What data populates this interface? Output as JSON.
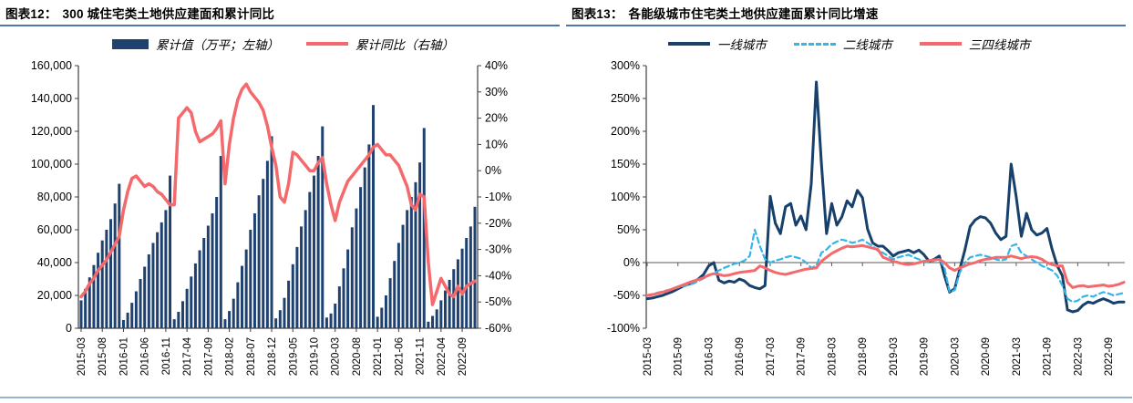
{
  "panels": [
    {
      "title_prefix": "图表12：",
      "title": "300 城住宅类土地供应建面和累计同比",
      "rule_color": "#4f76ae",
      "footer_rule_color": "#95b3d7",
      "legend": [
        {
          "label": "累计值（万平；左轴）",
          "swatch": "bar",
          "color": "#1e4170"
        },
        {
          "label": "累计同比（右轴）",
          "swatch": "line",
          "color": "#f4696c"
        }
      ]
    },
    {
      "title_prefix": "图表13：",
      "title": "各能级城市住宅类土地供应建面累计同比增速",
      "rule_color": "#4f76ae",
      "footer_rule_color": "#95b3d7",
      "legend": [
        {
          "label": "一线城市",
          "swatch": "line",
          "color": "#17406b"
        },
        {
          "label": "二线城市",
          "swatch": "line-dashed",
          "color": "#33b5e8"
        },
        {
          "label": "三四线城市",
          "swatch": "line",
          "color": "#f4696c"
        }
      ]
    }
  ],
  "chart_data": [
    {
      "type": "bar+line",
      "title": "300 城住宅类土地供应建面和累计同比",
      "n_points": 94,
      "x_start": "2015-03",
      "x_tick_indices": [
        0,
        5,
        10,
        15,
        20,
        25,
        30,
        35,
        40,
        45,
        50,
        55,
        60,
        65,
        70,
        75,
        80,
        85,
        90
      ],
      "x_tick_labels": [
        "2015-03",
        "2015-08",
        "2016-01",
        "2016-06",
        "2016-11",
        "2017-04",
        "2017-09",
        "2018-02",
        "2018-07",
        "2018-12",
        "2019-05",
        "2019-10",
        "2020-03",
        "2020-08",
        "2021-01",
        "2021-06",
        "2021-11",
        "2022-04",
        "2022-09"
      ],
      "y_left": {
        "min": 0,
        "max": 160000,
        "step": 20000,
        "labels": [
          "0",
          "20,000",
          "40,000",
          "60,000",
          "80,000",
          "100,000",
          "120,000",
          "140,000",
          "160,000"
        ]
      },
      "y_right": {
        "min": -60,
        "max": 40,
        "step": 10,
        "suffix": "%",
        "labels": [
          "-60%",
          "-50%",
          "-40%",
          "-30%",
          "-20%",
          "-10%",
          "0%",
          "10%",
          "20%",
          "30%",
          "40%"
        ]
      },
      "series": [
        {
          "name": "累计值（万平；左轴）",
          "type": "bar",
          "axis": "left",
          "color": "#1e4170",
          "values": [
            17000,
            24000,
            31000,
            38500,
            46000,
            53500,
            60000,
            66500,
            76000,
            88000,
            5000,
            9500,
            15500,
            22500,
            30000,
            37500,
            45000,
            52000,
            58500,
            64500,
            72000,
            93000,
            5500,
            10000,
            16500,
            24000,
            31500,
            39500,
            47500,
            55000,
            62500,
            70000,
            80000,
            105000,
            5500,
            10500,
            18000,
            28000,
            38000,
            48000,
            60000,
            70000,
            81000,
            91000,
            102000,
            117000,
            6000,
            11000,
            18500,
            29000,
            39000,
            49500,
            62000,
            72000,
            83000,
            93000,
            105000,
            123000,
            6500,
            9000,
            15000,
            25500,
            36500,
            48000,
            61500,
            73000,
            86000,
            98000,
            112000,
            136000,
            7000,
            12500,
            20000,
            30500,
            41000,
            52000,
            63000,
            72000,
            80000,
            89000,
            101000,
            122000,
            4000,
            7500,
            11500,
            17000,
            23000,
            29500,
            36000,
            42000,
            48500,
            55000,
            62000,
            74000
          ]
        },
        {
          "name": "累计同比（右轴）",
          "type": "line",
          "axis": "right",
          "color": "#f4696c",
          "values": [
            -48,
            -46,
            -43,
            -41,
            -38,
            -36,
            -34,
            -31,
            -28,
            -25,
            -15,
            -8,
            -3,
            -2,
            -4,
            -6,
            -5,
            -6,
            -8,
            -9,
            -11,
            -13,
            -13,
            20,
            22,
            24,
            22,
            15,
            11,
            12,
            13,
            14,
            16,
            19,
            -5,
            10,
            20,
            27,
            31,
            33,
            30,
            28,
            26,
            23,
            17,
            9,
            2,
            -10,
            -12,
            -5,
            7,
            6,
            4,
            2,
            0,
            0,
            3,
            5,
            -5,
            -13,
            -19,
            -12,
            -8,
            -4,
            -2,
            0,
            2,
            4,
            6,
            9,
            10,
            8,
            6,
            6,
            4,
            2,
            -2,
            -6,
            -13,
            -15,
            -9,
            -10,
            -35,
            -51,
            -46,
            -41,
            -44,
            -47,
            -48,
            -44,
            -47,
            -44,
            -43,
            -42
          ]
        }
      ]
    },
    {
      "type": "line",
      "title": "各能级城市住宅类土地供应建面累计同比增速",
      "n_points": 94,
      "x_start": "2015-03",
      "x_tick_indices": [
        0,
        6,
        12,
        18,
        24,
        30,
        36,
        42,
        48,
        54,
        60,
        66,
        72,
        78,
        84,
        90
      ],
      "x_tick_labels": [
        "2015-03",
        "2015-09",
        "2016-03",
        "2016-09",
        "2017-03",
        "2017-09",
        "2018-03",
        "2018-09",
        "2019-03",
        "2019-09",
        "2020-03",
        "2020-09",
        "2021-03",
        "2021-09",
        "2022-03",
        "2022-09"
      ],
      "y": {
        "min": -100,
        "max": 300,
        "step": 50,
        "suffix": "%",
        "labels": [
          "-100%",
          "-50%",
          "0%",
          "50%",
          "100%",
          "150%",
          "200%",
          "250%",
          "300%"
        ]
      },
      "zero_line": true,
      "series": [
        {
          "name": "一线城市",
          "color": "#17406b",
          "dash": null,
          "width": 3,
          "values": [
            -55,
            -54,
            -52,
            -50,
            -47,
            -44,
            -40,
            -36,
            -33,
            -30,
            -25,
            -18,
            -5,
            0,
            -27,
            -31,
            -28,
            -30,
            -25,
            -28,
            -35,
            -38,
            -40,
            -35,
            101,
            60,
            44,
            85,
            90,
            57,
            71,
            50,
            120,
            275,
            150,
            44,
            90,
            57,
            70,
            94,
            85,
            110,
            99,
            51,
            30,
            25,
            25,
            18,
            10,
            15,
            17,
            19,
            15,
            19,
            12,
            2,
            5,
            10,
            -20,
            -45,
            -40,
            -10,
            20,
            55,
            65,
            70,
            68,
            60,
            45,
            35,
            40,
            150,
            100,
            40,
            75,
            50,
            42,
            45,
            52,
            20,
            -5,
            -20,
            -72,
            -75,
            -73,
            -65,
            -60,
            -62,
            -58,
            -55,
            -58,
            -62,
            -60,
            -60
          ]
        },
        {
          "name": "二线城市",
          "color": "#33b5e8",
          "dash": "6 4",
          "width": 2.2,
          "values": [
            -50,
            -48,
            -46,
            -44,
            -42,
            -40,
            -38,
            -36,
            -34,
            -32,
            -28,
            -24,
            -20,
            -16,
            -12,
            -8,
            -5,
            -2,
            0,
            3,
            10,
            50,
            25,
            5,
            0,
            3,
            5,
            8,
            10,
            8,
            6,
            0,
            -8,
            -5,
            15,
            20,
            28,
            32,
            35,
            33,
            30,
            32,
            35,
            30,
            25,
            18,
            15,
            10,
            5,
            8,
            10,
            12,
            8,
            5,
            2,
            0,
            3,
            5,
            -8,
            -45,
            -42,
            -15,
            0,
            8,
            10,
            12,
            10,
            8,
            5,
            3,
            5,
            25,
            28,
            15,
            10,
            5,
            0,
            -5,
            -8,
            -12,
            -20,
            -35,
            -55,
            -60,
            -58,
            -52,
            -50,
            -52,
            -48,
            -45,
            -47,
            -50,
            -48,
            -46
          ]
        },
        {
          "name": "三四线城市",
          "color": "#f4696c",
          "dash": null,
          "width": 3,
          "values": [
            -50,
            -49,
            -47,
            -45,
            -43,
            -40,
            -37,
            -34,
            -31,
            -28,
            -26,
            -23,
            -19,
            -17,
            -18,
            -20,
            -19,
            -17,
            -15,
            -14,
            -13,
            -12,
            -5,
            -8,
            -12,
            -15,
            -17,
            -18,
            -16,
            -14,
            -12,
            -10,
            -9,
            -8,
            2,
            8,
            14,
            18,
            22,
            25,
            24,
            25,
            26,
            24,
            22,
            20,
            8,
            5,
            2,
            0,
            -2,
            -3,
            -2,
            0,
            2,
            3,
            4,
            5,
            0,
            -8,
            -12,
            -8,
            -5,
            -2,
            0,
            3,
            5,
            6,
            8,
            8,
            8,
            10,
            8,
            6,
            8,
            9,
            8,
            5,
            0,
            -3,
            -5,
            -5,
            -30,
            -38,
            -36,
            -35,
            -37,
            -36,
            -35,
            -34,
            -36,
            -35,
            -33,
            -30
          ]
        }
      ]
    }
  ]
}
